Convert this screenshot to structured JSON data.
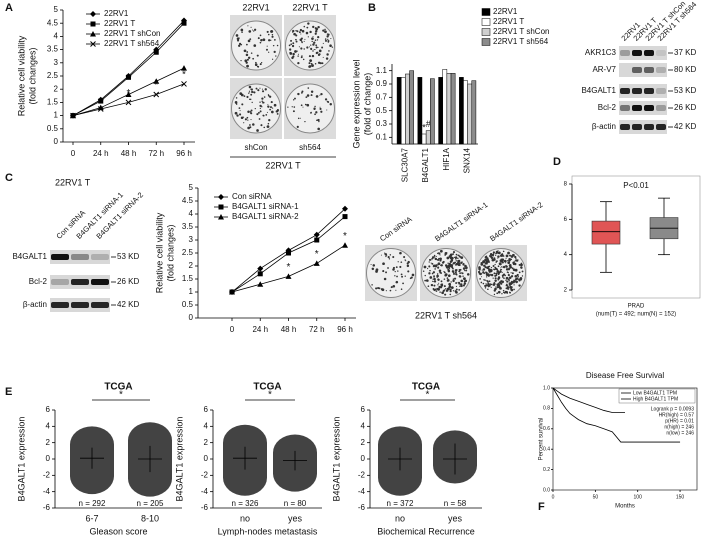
{
  "panel_labels": [
    "A",
    "B",
    "C",
    "D",
    "E",
    "F"
  ],
  "photos_A": {
    "top": [
      "22RV1",
      "22RV1 T"
    ],
    "bottom": [
      "shCon",
      "sh564"
    ],
    "caption": "22RV1 T"
  },
  "blot_B": {
    "columns": [
      "22RV1",
      "22RV1 T",
      "22RV1 T shCon",
      "22RV1 T sh564"
    ],
    "rows": [
      {
        "name": "AKR1C3",
        "size": "37 KD"
      },
      {
        "name": "AR-V7",
        "size": "80 KD"
      },
      {
        "name": "B4GALT1",
        "size": "53 KD"
      },
      {
        "name": "Bcl-2",
        "size": "26 KD"
      },
      {
        "name": "β-actin",
        "size": "42 KD"
      }
    ]
  },
  "blot_C": {
    "title": "22RV1 T",
    "columns": [
      "Con siRNA",
      "B4GALT1 siRNA-1",
      "B4GALT1 siRNA-2"
    ],
    "rows": [
      {
        "name": "B4GALT1",
        "size": "53 KD"
      },
      {
        "name": "Bcl-2",
        "size": "26 KD"
      },
      {
        "name": "β-actin",
        "size": "42 KD"
      }
    ]
  },
  "photos_C": {
    "columns": [
      "Con siRNA",
      "B4GALT1 siRNA-1",
      "B4GALT1 siRNA-2"
    ],
    "caption": "22RV1 T sh564"
  },
  "chart_data": [
    {
      "type": "line",
      "y_label": [
        "Relative cell viability",
        "(fold changes)"
      ],
      "categories": [
        "0",
        "24 h",
        "48 h",
        "72 h",
        "96 h"
      ],
      "ylim": [
        0,
        5
      ],
      "yticks": [
        0,
        0.5,
        1,
        1.5,
        2,
        2.5,
        3,
        3.5,
        4,
        4.5,
        5
      ],
      "series": [
        {
          "name": "22RV1",
          "color": "#000000",
          "marker": "diamond",
          "values": [
            1,
            1.6,
            2.5,
            3.5,
            4.6
          ]
        },
        {
          "name": "22RV1 T",
          "color": "#000000",
          "marker": "square",
          "values": [
            1,
            1.55,
            2.45,
            3.4,
            4.5
          ]
        },
        {
          "name": "22RV1 T shCon",
          "color": "#000000",
          "marker": "triangle",
          "values": [
            1,
            1.3,
            1.8,
            2.3,
            2.8
          ]
        },
        {
          "name": "22RV1 T sh564",
          "color": "#000000",
          "marker": "x",
          "values": [
            1,
            1.25,
            1.5,
            1.8,
            2.2
          ]
        }
      ],
      "significance": [
        null,
        null,
        "*",
        "*",
        "*"
      ]
    },
    {
      "type": "bar",
      "y_label": [
        "Gene expression level",
        "(fold of change)"
      ],
      "categories": [
        "SLC30A7",
        "B4GALT1",
        "HIF1A",
        "SNX14"
      ],
      "ylim": [
        0,
        1.2
      ],
      "yticks": [
        0.1,
        0.3,
        0.5,
        0.7,
        0.9,
        1.1
      ],
      "series": [
        {
          "name": "22RV1",
          "color": "#000000",
          "values": [
            1,
            1,
            1,
            1
          ],
          "labels": [
            null,
            null,
            null,
            null
          ]
        },
        {
          "name": "22RV1 T",
          "color": "#ffffff",
          "values": [
            1,
            0.15,
            1.12,
            0.95
          ],
          "labels": [
            null,
            "*",
            null,
            null
          ]
        },
        {
          "name": "22RV1 T shCon",
          "color": "#d0d0d0",
          "values": [
            1.05,
            0.2,
            1.06,
            0.9
          ],
          "labels": [
            null,
            "#",
            null,
            null
          ]
        },
        {
          "name": "22RV1 T sh564",
          "color": "#8c8c8c",
          "values": [
            1.1,
            0.98,
            1.06,
            0.95
          ],
          "labels": [
            null,
            null,
            null,
            null
          ]
        }
      ]
    },
    {
      "type": "line",
      "y_label": [
        "Relative cell viability",
        "(fold changes)"
      ],
      "categories": [
        "0",
        "24 h",
        "48 h",
        "72 h",
        "96 h"
      ],
      "ylim": [
        0,
        5
      ],
      "yticks": [
        0,
        0.5,
        1,
        1.5,
        2,
        2.5,
        3,
        3.5,
        4,
        4.5,
        5
      ],
      "series": [
        {
          "name": "Con siRNA",
          "color": "#000000",
          "marker": "diamond",
          "values": [
            1,
            1.9,
            2.6,
            3.2,
            4.2
          ]
        },
        {
          "name": "B4GALT1 siRNA-1",
          "color": "#000000",
          "marker": "square",
          "values": [
            1,
            1.7,
            2.5,
            3.0,
            3.9
          ]
        },
        {
          "name": "B4GALT1 siRNA-2",
          "color": "#000000",
          "marker": "triangle",
          "values": [
            1,
            1.3,
            1.6,
            2.1,
            2.8
          ]
        }
      ],
      "significance": [
        null,
        null,
        "*",
        "*",
        "*"
      ]
    },
    {
      "type": "box",
      "title": "P<0.01",
      "x_label": "PRAD",
      "subtitle": "(num(T) = 492; num(N) = 152)",
      "ylim": [
        2,
        8
      ],
      "yticks": [
        2,
        4,
        6,
        8
      ],
      "boxes": [
        {
          "color": "#e05555",
          "whisker_low": 3.0,
          "q1": 4.6,
          "median": 5.3,
          "q3": 5.9,
          "whisker_high": 7.0
        },
        {
          "color": "#8a8a8a",
          "whisker_low": 4.0,
          "q1": 4.9,
          "median": 5.5,
          "q3": 6.1,
          "whisker_high": 7.2
        }
      ]
    },
    {
      "type": "dot",
      "title": "TCGA",
      "y_label": "B4GALT1 expression",
      "x_label": "Gleason score",
      "categories": [
        "6-7",
        "8-10"
      ],
      "n_labels": [
        "n = 292",
        "n = 205"
      ],
      "ylim": [
        -6,
        6
      ],
      "yticks": [
        -6,
        -4,
        -2,
        0,
        2,
        4,
        6
      ],
      "mean": [
        0.1,
        0.0
      ],
      "sd": [
        1.3,
        1.6
      ],
      "min": [
        -4.3,
        -4.6
      ],
      "max": [
        4.0,
        4.5
      ],
      "significance": "*"
    },
    {
      "type": "dot",
      "title": "TCGA",
      "y_label": "B4GALT1 expression",
      "x_label": "Lymph-nodes metastasis",
      "categories": [
        "no",
        "yes"
      ],
      "n_labels": [
        "n = 326",
        "n = 80"
      ],
      "ylim": [
        -6,
        6
      ],
      "yticks": [
        -6,
        -4,
        -2,
        0,
        2,
        4,
        6
      ],
      "mean": [
        0.1,
        -0.2
      ],
      "sd": [
        1.4,
        1.2
      ],
      "min": [
        -4.5,
        -4.0
      ],
      "max": [
        4.2,
        3.0
      ],
      "significance": "*"
    },
    {
      "type": "dot",
      "title": "TCGA",
      "y_label": "B4GALT1 expression",
      "x_label": "Biochemical Recurrence",
      "categories": [
        "no",
        "yes"
      ],
      "n_labels": [
        "n = 372",
        "n = 58"
      ],
      "ylim": [
        -6,
        6
      ],
      "yticks": [
        -6,
        -4,
        -2,
        0,
        2,
        4,
        6
      ],
      "mean": [
        0.0,
        0.0
      ],
      "sd": [
        1.4,
        1.9
      ],
      "min": [
        -4.5,
        -3.0
      ],
      "max": [
        4.0,
        3.5
      ],
      "significance": "*"
    },
    {
      "type": "survival",
      "title": "Disease Free Survival",
      "x_label": "Months",
      "y_label": "Percent survival",
      "xlim": [
        0,
        170
      ],
      "xticks": [
        0,
        50,
        100,
        150
      ],
      "ylim": [
        0,
        1
      ],
      "yticks": [
        {
          "value": 0,
          "label": "0.0"
        },
        0.2,
        0.4,
        0.6,
        0.8,
        {
          "value": 1,
          "label": "1.0"
        }
      ],
      "series": [
        {
          "name": "Low B4GALT1 TPM",
          "color": "#2233cc",
          "x": [
            0,
            5,
            10,
            15,
            20,
            25,
            30,
            40,
            50,
            60,
            70,
            80,
            90,
            150
          ],
          "values": [
            1,
            0.93,
            0.86,
            0.8,
            0.75,
            0.72,
            0.69,
            0.65,
            0.63,
            0.6,
            0.57,
            0.47,
            0.47,
            0.47
          ]
        },
        {
          "name": "High B4GALT1 TPM",
          "color": "#dd2222",
          "x": [
            0,
            5,
            10,
            20,
            30,
            40,
            50,
            60,
            70,
            80,
            85
          ],
          "values": [
            1,
            0.97,
            0.94,
            0.9,
            0.87,
            0.84,
            0.81,
            0.78,
            0.76,
            0.76,
            0.76
          ]
        }
      ],
      "stats": [
        "Logrank p = 0.0093",
        "HR(high) = 0.57",
        "p(HR) = 0.01",
        "n(high) = 246",
        "n(low) = 246"
      ]
    }
  ]
}
